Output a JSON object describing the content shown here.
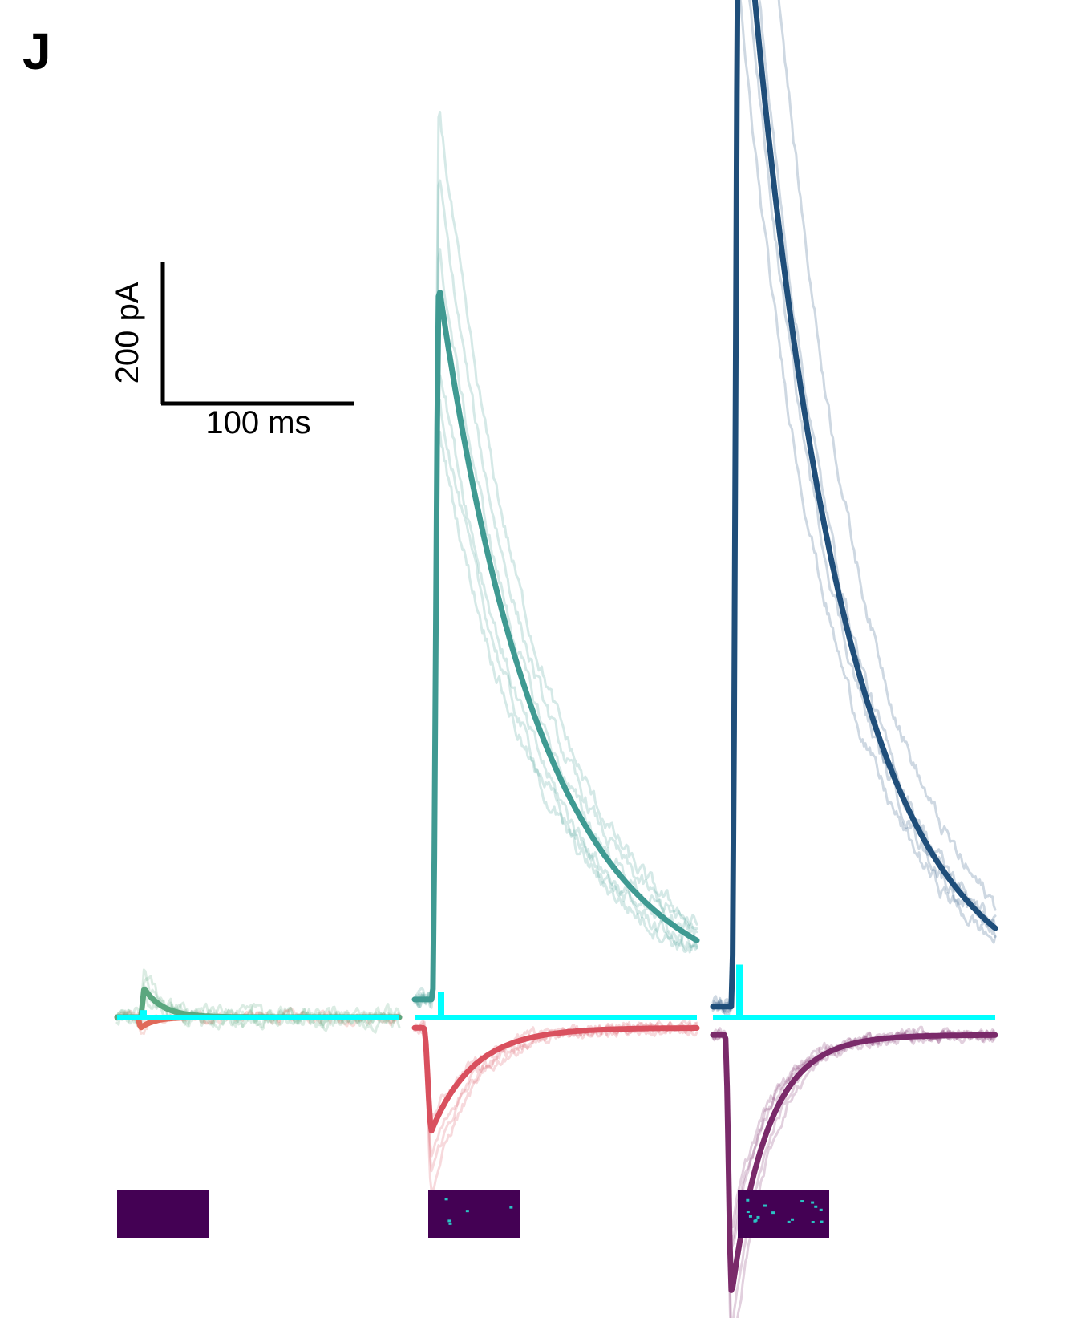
{
  "panel_letter": "J",
  "scale_bar": {
    "current_label": "200 pA",
    "time_label": "100 ms",
    "current_value": 200,
    "current_unit": "pA",
    "time_value": 100,
    "time_unit": "ms"
  },
  "colors": {
    "stimulus": "#00FFFF",
    "inset_background": "#440154",
    "inset_spot": "#2BC4C4",
    "sweep1_ipsc": "#5BA77F",
    "sweep1_epsc": "#E06A5A",
    "sweep2_ipsc": "#3F9A92",
    "sweep2_epsc": "#D9505E",
    "sweep3_ipsc": "#1F4E7A",
    "sweep3_epsc": "#7A2A6A"
  },
  "chart_data": {
    "type": "line",
    "description_units": {
      "x": "ms",
      "y": "pA"
    },
    "sweeps": [
      {
        "ipsc": {
          "baseline": 0,
          "peak": 40,
          "latency": 25,
          "rise": 4,
          "decay": 20,
          "color": "#5BA77F"
        },
        "epsc": {
          "baseline": 0,
          "peak": -15,
          "latency": 22,
          "rise": 3,
          "decay": 15,
          "color": "#E06A5A"
        },
        "ipsc_trials": [
          0.6,
          1.6,
          0.9,
          1.2
        ],
        "epsc_trials": [
          0.8,
          1.5
        ],
        "stim_height": 25,
        "inset_spots": 0
      },
      {
        "ipsc": {
          "baseline": 25,
          "peak": 1030,
          "latency": 19,
          "rise": 7,
          "decay": 110,
          "color": "#3F9A92"
        },
        "epsc": {
          "baseline": -15,
          "peak": -160,
          "latency": 10,
          "rise": 8,
          "decay": 45,
          "color": "#D9505E"
        },
        "ipsc_trials": [
          1.25,
          1.15,
          0.9,
          0.8,
          1.05,
          0.85
        ],
        "epsc_trials": [
          0.9,
          1.4,
          1.6,
          1.25
        ],
        "stim_height": 90,
        "inset_spots": 5
      },
      {
        "ipsc": {
          "baseline": 15,
          "peak": 1690,
          "latency": 20,
          "rise": 8,
          "decay": 100,
          "color": "#1F4E7A"
        },
        "epsc": {
          "baseline": -25,
          "peak": -390,
          "latency": 13,
          "rise": 7,
          "decay": 38,
          "color": "#7A2A6A"
        },
        "ipsc_trials": [
          1.05,
          0.85,
          1.3,
          1.0,
          0.95
        ],
        "epsc_trials": [
          0.75,
          0.8,
          1.15,
          1.3,
          0.85
        ],
        "stim_height": 185,
        "inset_spots": 16
      }
    ],
    "xlim": [
      0,
      300
    ],
    "y_zero": 0
  }
}
